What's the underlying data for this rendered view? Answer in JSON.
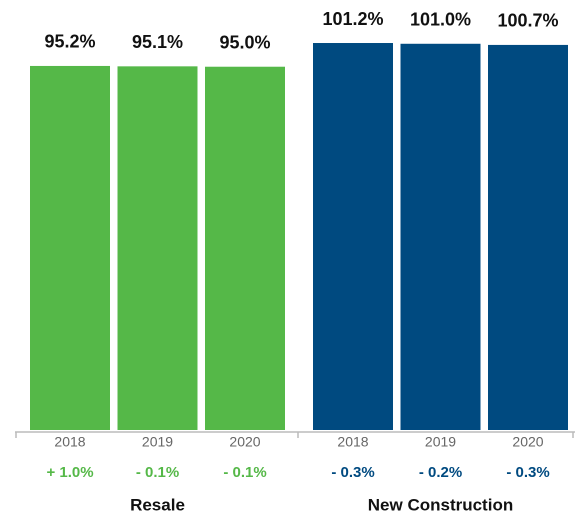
{
  "chart_data": {
    "type": "bar",
    "categories": [
      "2018",
      "2019",
      "2020"
    ],
    "series": [
      {
        "name": "Resale",
        "color": "#55b848",
        "values": [
          95.2,
          95.1,
          95.0
        ],
        "value_labels": [
          "95.2%",
          "95.1%",
          "95.0%"
        ],
        "change_labels": [
          "+ 1.0%",
          "- 0.1%",
          "- 0.1%"
        ]
      },
      {
        "name": "New Construction",
        "color": "#004a80",
        "values": [
          101.2,
          101.0,
          100.7
        ],
        "value_labels": [
          "101.2%",
          "101.0%",
          "100.7%"
        ],
        "change_labels": [
          "- 0.3%",
          "- 0.2%",
          "- 0.3%"
        ]
      }
    ]
  }
}
